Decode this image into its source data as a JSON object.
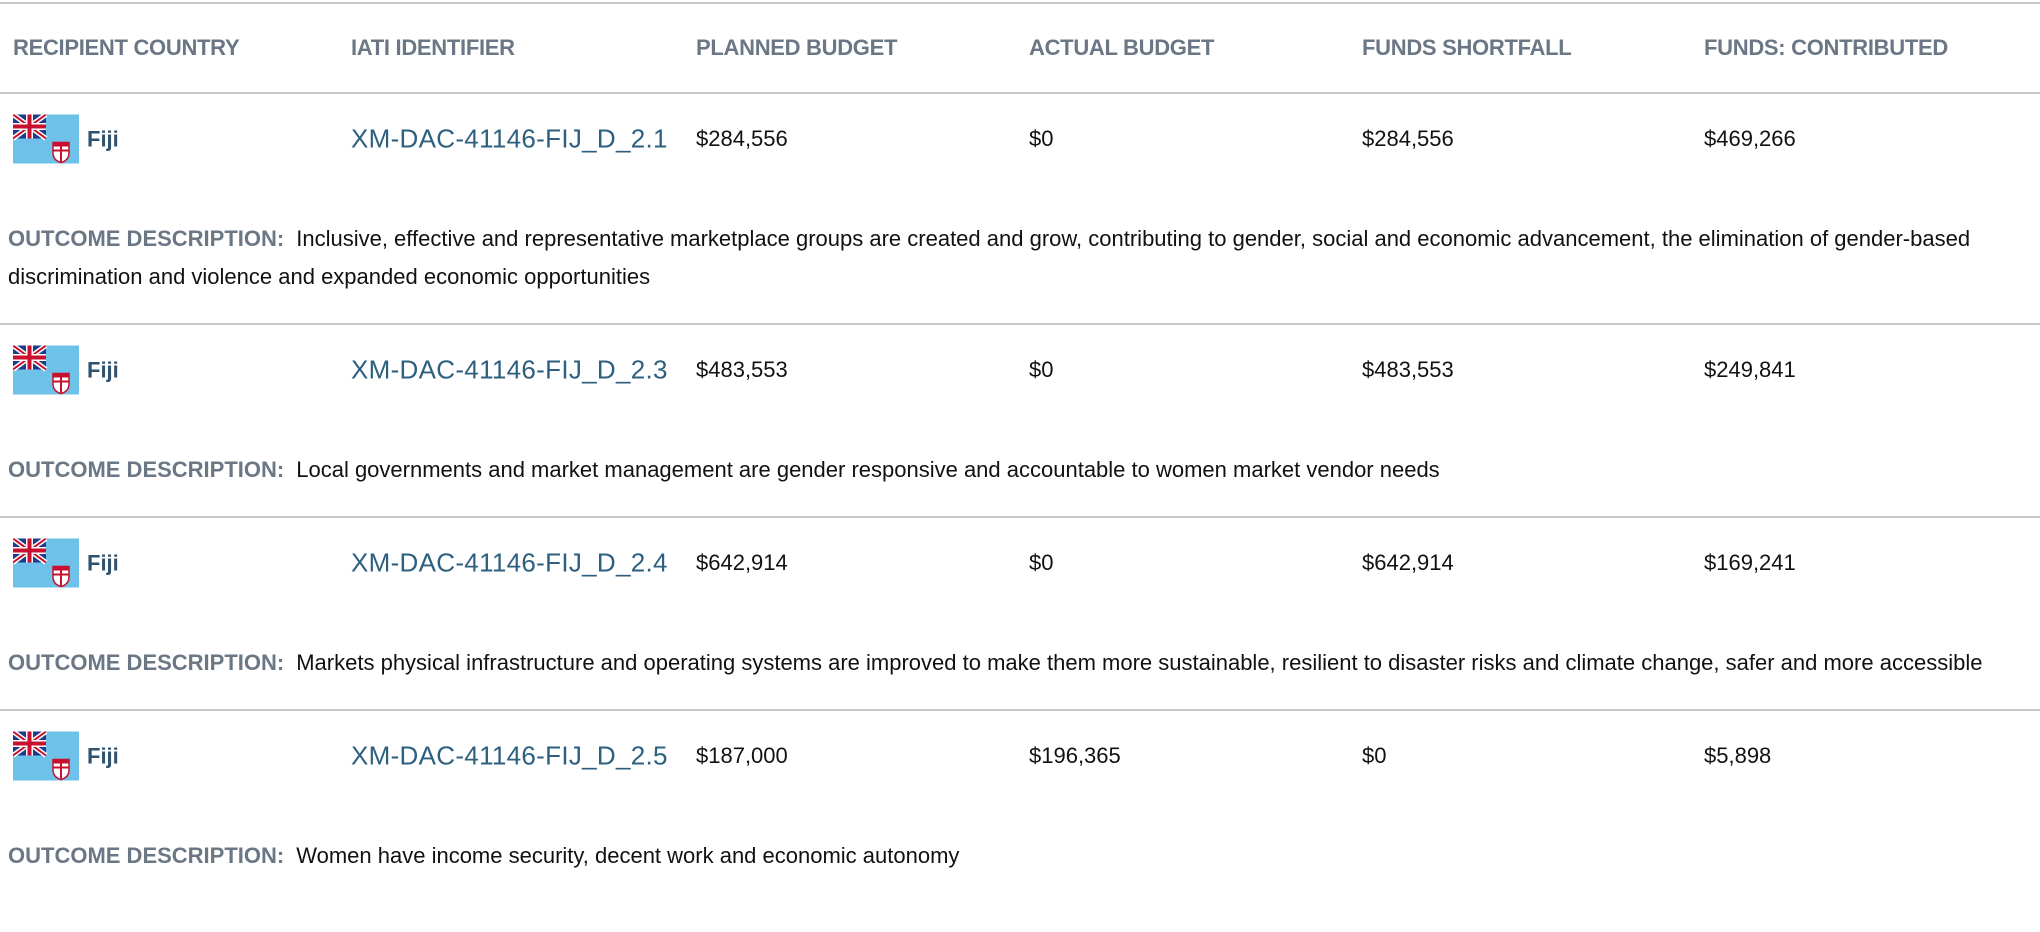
{
  "header": {
    "columns": [
      "RECIPIENT COUNTRY",
      "IATI IDENTIFIER",
      "PLANNED BUDGET",
      "ACTUAL BUDGET",
      "FUNDS SHORTFALL",
      "FUNDS: CONTRIBUTED"
    ]
  },
  "rows": [
    {
      "country": "Fiji",
      "identifier": "XM-DAC-41146-FIJ_D_2.1",
      "planned": "$284,556",
      "actual": "$0",
      "shortfall": "$284,556",
      "contributed": "$469,266",
      "description_label": "OUTCOME DESCRIPTION:",
      "description": "Inclusive, effective and representative marketplace groups are created and grow, contributing to gender, social and economic advancement, the elimination of gender-based discrimination and violence and expanded economic opportunities"
    },
    {
      "country": "Fiji",
      "identifier": "XM-DAC-41146-FIJ_D_2.3",
      "planned": "$483,553",
      "actual": "$0",
      "shortfall": "$483,553",
      "contributed": "$249,841",
      "description_label": "OUTCOME DESCRIPTION:",
      "description": "Local governments and market management are gender responsive and accountable to women market vendor needs"
    },
    {
      "country": "Fiji",
      "identifier": "XM-DAC-41146-FIJ_D_2.4",
      "planned": "$642,914",
      "actual": "$0",
      "shortfall": "$642,914",
      "contributed": "$169,241",
      "description_label": "OUTCOME DESCRIPTION:",
      "description": "Markets physical infrastructure and operating systems are improved to make them more sustainable, resilient to disaster risks and climate change, safer and more accessible"
    },
    {
      "country": "Fiji",
      "identifier": "XM-DAC-41146-FIJ_D_2.5",
      "planned": "$187,000",
      "actual": "$196,365",
      "shortfall": "$0",
      "contributed": "$5,898",
      "description_label": "OUTCOME DESCRIPTION:",
      "description": "Women have income security, decent work and economic autonomy"
    }
  ]
}
